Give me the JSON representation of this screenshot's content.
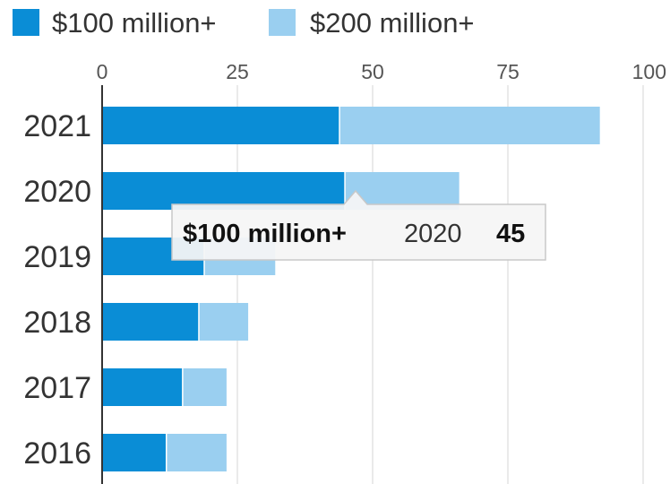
{
  "chart_data": {
    "type": "bar",
    "orientation": "horizontal",
    "stacked": true,
    "title": "",
    "xlabel": "",
    "ylabel": "",
    "categories": [
      "2021",
      "2020",
      "2019",
      "2018",
      "2017",
      "2016"
    ],
    "series": [
      {
        "name": "$100 million+",
        "values": [
          44,
          45,
          19,
          18,
          15,
          12
        ],
        "color": "#0a8dd6"
      },
      {
        "name": "$200 million+",
        "values": [
          48,
          21,
          13,
          9,
          8,
          11
        ],
        "color": "#9acff0"
      }
    ],
    "xlim": [
      0,
      100
    ],
    "xticks": [
      "0",
      "25",
      "50",
      "75",
      "100"
    ],
    "grid": true,
    "legend_position": "top-left",
    "tooltip": {
      "series": "$100 million+",
      "category": "2020",
      "value": "45"
    }
  }
}
